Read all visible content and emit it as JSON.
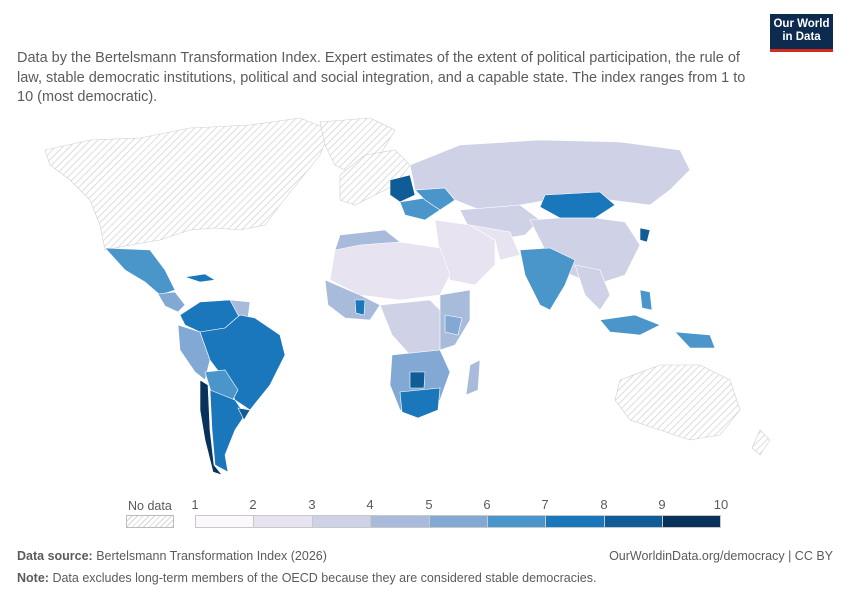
{
  "subtitle": "Data by the Bertelsmann Transformation Index. Expert estimates of the extent of political participation, the rule of law, stable democratic institutions, political and social integration, and a capable state. The index ranges from 1 to 10 (most democratic).",
  "logo": {
    "line1": "Our World",
    "line2": "in Data"
  },
  "legend": {
    "no_data_label": "No data",
    "ticks": [
      "1",
      "2",
      "3",
      "4",
      "5",
      "6",
      "7",
      "8",
      "9",
      "10"
    ],
    "bin_colors": [
      "#fcf8fb",
      "#e7e3f1",
      "#cfd2e6",
      "#a8bbdb",
      "#82a9d4",
      "#4a96cb",
      "#1b77bc",
      "#0f5c97",
      "#08325c"
    ]
  },
  "footer": {
    "source_label": "Data source:",
    "source_text": "Bertelsmann Transformation Index (2026)",
    "url": "OurWorldinData.org/democracy | CC BY",
    "note_label": "Note:",
    "note_text": "Data excludes long-term members of the OECD because they are considered stable democracies."
  }
}
